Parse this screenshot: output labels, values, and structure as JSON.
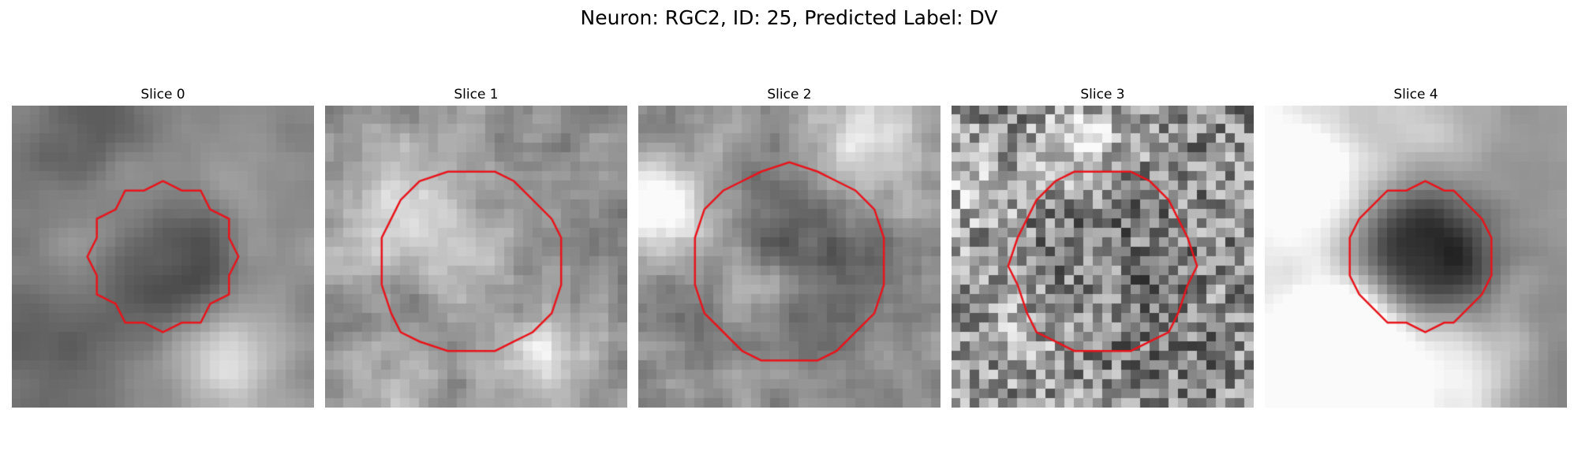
{
  "figure": {
    "suptitle": "Neuron: RGC2, ID: 25, Predicted Label: DV",
    "contour_color": "#e8141b",
    "slices": [
      {
        "title": "Slice 0",
        "seed": 11,
        "blur": 2,
        "contrast": 1.25,
        "noise": 0.25,
        "cell": [
          0.5,
          0.5,
          0.22
        ],
        "cell_dark": 0.32,
        "contour_offset": 0.0
      },
      {
        "title": "Slice 1",
        "seed": 23,
        "blur": 1,
        "contrast": 1.0,
        "noise": 0.45,
        "cell": [
          0.48,
          0.52,
          0.28
        ],
        "cell_dark": 0.22,
        "contour_offset": 0.0
      },
      {
        "title": "Slice 2",
        "seed": 37,
        "blur": 1,
        "contrast": 0.95,
        "noise": 0.45,
        "cell": [
          0.5,
          0.52,
          0.3
        ],
        "cell_dark": 0.18,
        "contour_offset": 0.0
      },
      {
        "title": "Slice 3",
        "seed": 49,
        "blur": 0,
        "contrast": 0.9,
        "noise": 0.65,
        "cell": [
          0.5,
          0.52,
          0.28
        ],
        "cell_dark": 0.12,
        "contour_offset": 0.0
      },
      {
        "title": "Slice 4",
        "seed": 61,
        "blur": 2,
        "contrast": 1.3,
        "noise": 0.25,
        "cell": [
          0.52,
          0.5,
          0.22
        ],
        "cell_dark": 0.35,
        "contour_offset": 0.0
      }
    ]
  }
}
